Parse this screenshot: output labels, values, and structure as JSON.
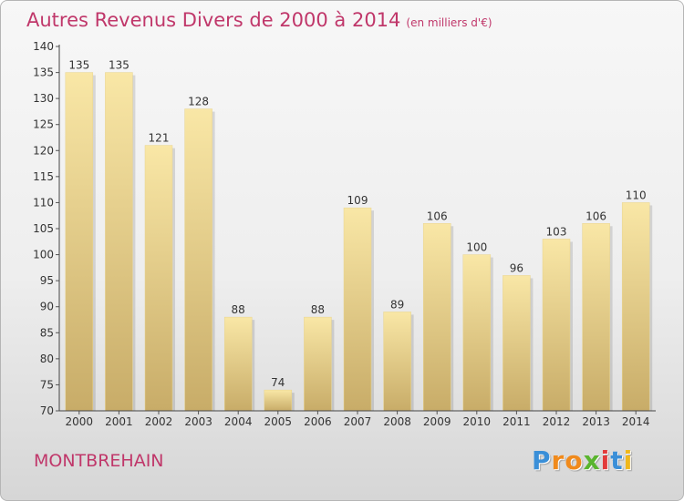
{
  "title": {
    "main": "Autres Revenus Divers de 2000 à 2014",
    "unit": "(en milliers d'€)"
  },
  "place_label": "MONTBREHAIN",
  "brand": {
    "letters": [
      "P",
      "r",
      "o",
      "x",
      "i",
      "t",
      "i"
    ],
    "colors": [
      "#3a8fd8",
      "#f08a1c",
      "#f08a1c",
      "#5ab52e",
      "#e23b3b",
      "#3a8fd8",
      "#f0b81c"
    ]
  },
  "colors": {
    "title": "#c0376a",
    "bar_light": "#f9e7a6",
    "bar_dark": "#c8ac68",
    "axis": "#333333"
  },
  "chart_data": {
    "type": "bar",
    "title": "Autres Revenus Divers de 2000 à 2014",
    "subtitle": "(en milliers d'€)",
    "categories": [
      "2000",
      "2001",
      "2002",
      "2003",
      "2004",
      "2005",
      "2006",
      "2007",
      "2008",
      "2009",
      "2010",
      "2011",
      "2012",
      "2013",
      "2014"
    ],
    "values": [
      135,
      135,
      121,
      128,
      88,
      74,
      88,
      109,
      89,
      106,
      100,
      96,
      103,
      106,
      110
    ],
    "ylim": [
      70,
      140
    ],
    "yticks": [
      70,
      75,
      80,
      85,
      90,
      95,
      100,
      105,
      110,
      115,
      120,
      125,
      130,
      135,
      140
    ],
    "grid": false,
    "data_labels": true
  }
}
